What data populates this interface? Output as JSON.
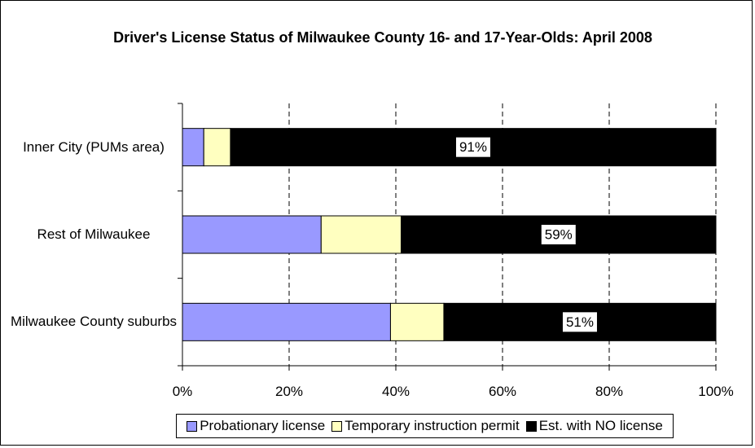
{
  "chart_data": {
    "type": "bar",
    "orientation": "horizontal",
    "stacked": true,
    "title": "Driver's License Status of Milwaukee County 16- and 17-Year-Olds: April 2008",
    "categories": [
      "Inner City (PUMs area)",
      "Rest of Milwaukee",
      "Milwaukee County suburbs"
    ],
    "series": [
      {
        "name": "Probationary license",
        "color": "#9999ff",
        "values": [
          4,
          26,
          39
        ]
      },
      {
        "name": "Temporary instruction permit",
        "color": "#ffffc0",
        "values": [
          5,
          15,
          10
        ]
      },
      {
        "name": "Est. with NO license",
        "color": "#000000",
        "values": [
          91,
          59,
          51
        ],
        "value_labels": [
          "91%",
          "59%",
          "51%"
        ]
      }
    ],
    "xlim": [
      0,
      100
    ],
    "xticks": [
      {
        "value": 0,
        "label": "0%"
      },
      {
        "value": 20,
        "label": "20%"
      },
      {
        "value": 40,
        "label": "40%"
      },
      {
        "value": 60,
        "label": "60%"
      },
      {
        "value": 80,
        "label": "80%"
      },
      {
        "value": 100,
        "label": "100%"
      }
    ],
    "grid": true,
    "legend": "bottom"
  }
}
